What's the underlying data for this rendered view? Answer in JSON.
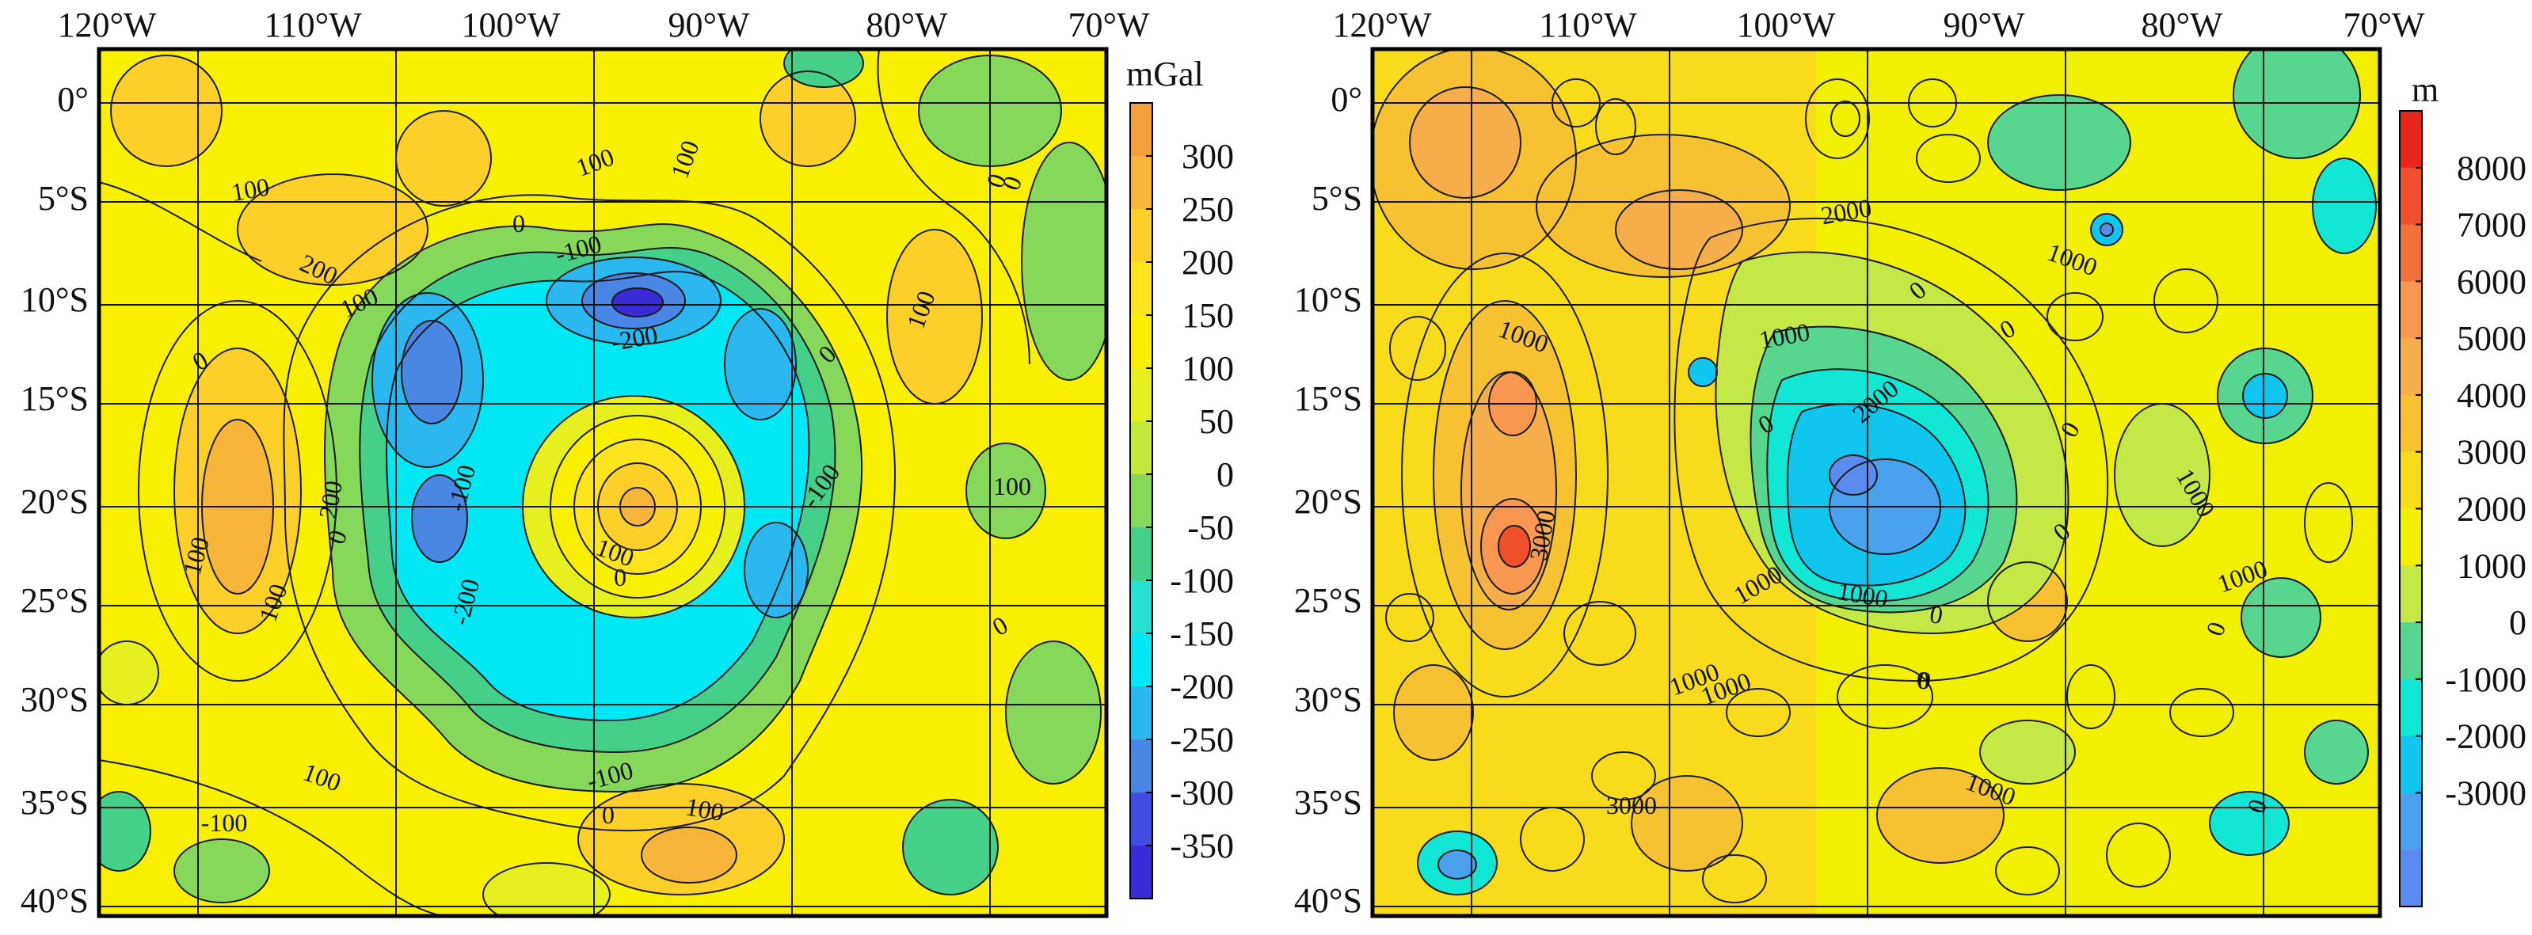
{
  "left_map": {
    "colorbar": {
      "unit": "mGal",
      "ticks": [
        "300",
        "250",
        "200",
        "150",
        "100",
        "50",
        "0",
        "-50",
        "-100",
        "-150",
        "-200",
        "-250",
        "-300",
        "-350"
      ],
      "colors": [
        "#f2a03c",
        "#f7b53a",
        "#fcd029",
        "#fde41c",
        "#f8f000",
        "#e6f01e",
        "#c2e83a",
        "#86d85a",
        "#45d08a",
        "#27e0d2",
        "#00e8f4",
        "#2bb8ee",
        "#4a86e4",
        "#3f4ee0",
        "#3a2bd6"
      ]
    },
    "contour_labels": [
      "100",
      "100",
      "100",
      "200",
      "100",
      "0",
      "-100",
      "-200",
      "0",
      "100",
      "0",
      "100",
      "0",
      "100",
      "200",
      "100",
      "0",
      "-100",
      "-200",
      "-100",
      "100",
      "0",
      "-100",
      "100",
      "0",
      "-100",
      "0",
      "100",
      "0"
    ]
  },
  "right_map": {
    "colorbar": {
      "unit": "m",
      "ticks": [
        "8000",
        "7000",
        "6000",
        "5000",
        "4000",
        "3000",
        "2000",
        "1000",
        "0",
        "-1000",
        "-2000",
        "-3000"
      ],
      "colors": [
        "#e8261c",
        "#f0502c",
        "#f4703a",
        "#f89850",
        "#f6ae4a",
        "#f6c232",
        "#f8dc1c",
        "#f2f000",
        "#c4e846",
        "#56d68e",
        "#12e6d4",
        "#10c6ee",
        "#4aa2ee",
        "#5a8cf0"
      ]
    },
    "contour_labels": [
      "2000",
      "1000",
      "0",
      "1000",
      "1000",
      "0",
      "2000",
      "0",
      "3000",
      "0",
      "1000",
      "0",
      "1000",
      "0",
      "1000",
      "1000",
      "0",
      "0",
      "1000",
      "3000",
      "1000",
      "0",
      "0",
      "1000"
    ]
  },
  "longitude_labels": [
    "120°W",
    "110°W",
    "100°W",
    "90°W",
    "80°W",
    "70°W"
  ],
  "latitude_labels": [
    "0°",
    "5°S",
    "10°S",
    "15°S",
    "20°S",
    "25°S",
    "30°S",
    "35°S",
    "40°S"
  ],
  "colors": {
    "grid": "#111111",
    "contour": "#1a1a1a",
    "frame": "#000000"
  }
}
